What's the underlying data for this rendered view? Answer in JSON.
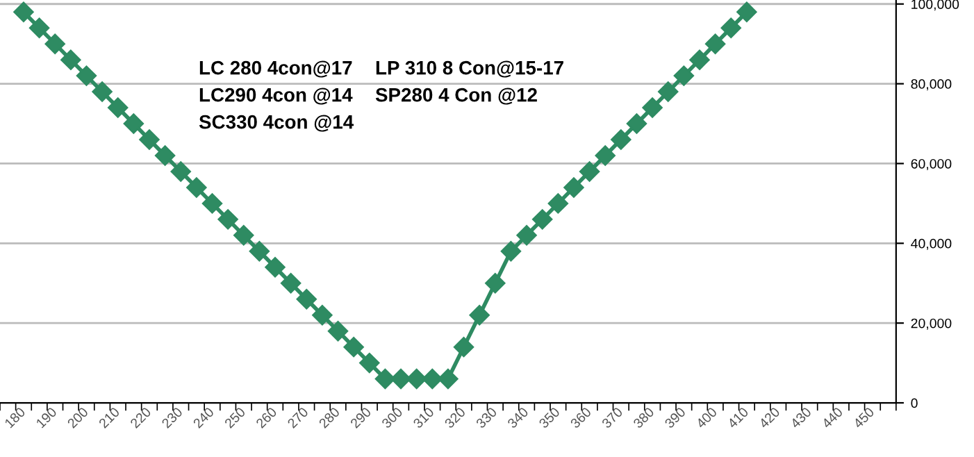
{
  "chart_data": {
    "type": "line",
    "categories": [
      null,
      "180",
      null,
      "190",
      null,
      "200",
      null,
      "210",
      null,
      "220",
      null,
      "230",
      null,
      "240",
      null,
      "250",
      null,
      "260",
      null,
      "270",
      null,
      "280",
      null,
      "290",
      null,
      "300",
      null,
      "310",
      null,
      "320",
      null,
      "330",
      null,
      "340",
      null,
      "350",
      null,
      "360",
      null,
      "370",
      null,
      "380",
      null,
      "390",
      null,
      "400",
      null,
      "410",
      null,
      "420",
      null,
      "430",
      null,
      "440",
      null,
      "450",
      null
    ],
    "series": [
      {
        "color": "#2e8b62",
        "values": [
          null,
          98000,
          94000,
          90000,
          86000,
          82000,
          78000,
          74000,
          70000,
          66000,
          62000,
          58000,
          54000,
          50000,
          46000,
          42000,
          38000,
          34000,
          30000,
          26000,
          22000,
          18000,
          14000,
          10000,
          6000,
          6000,
          6000,
          6000,
          6000,
          14000,
          22000,
          30000,
          38000,
          42000,
          46000,
          50000,
          54000,
          58000,
          62000,
          66000,
          70000,
          74000,
          78000,
          82000,
          86000,
          90000,
          94000,
          98000,
          null,
          null,
          null,
          null,
          null,
          null,
          null,
          null,
          null
        ]
      }
    ],
    "ylim": [
      0,
      101000
    ],
    "yticks": [
      0,
      {
        "value": 20000,
        "label": "20,000"
      },
      {
        "value": 40000,
        "label": "40,000"
      },
      {
        "value": 60000,
        "label": "60,000"
      },
      {
        "value": 80000,
        "label": "80,000"
      },
      {
        "value": 100000,
        "label": "100,000"
      }
    ],
    "grid": "y",
    "marker": "diamond",
    "line_style": "solid",
    "legend": false,
    "annotations": [
      "LC 280 4con@17",
      "LP 310 8 Con@15-17",
      "LC290 4con @14",
      "SP280 4 Con @12",
      "SC330 4con @14"
    ]
  }
}
